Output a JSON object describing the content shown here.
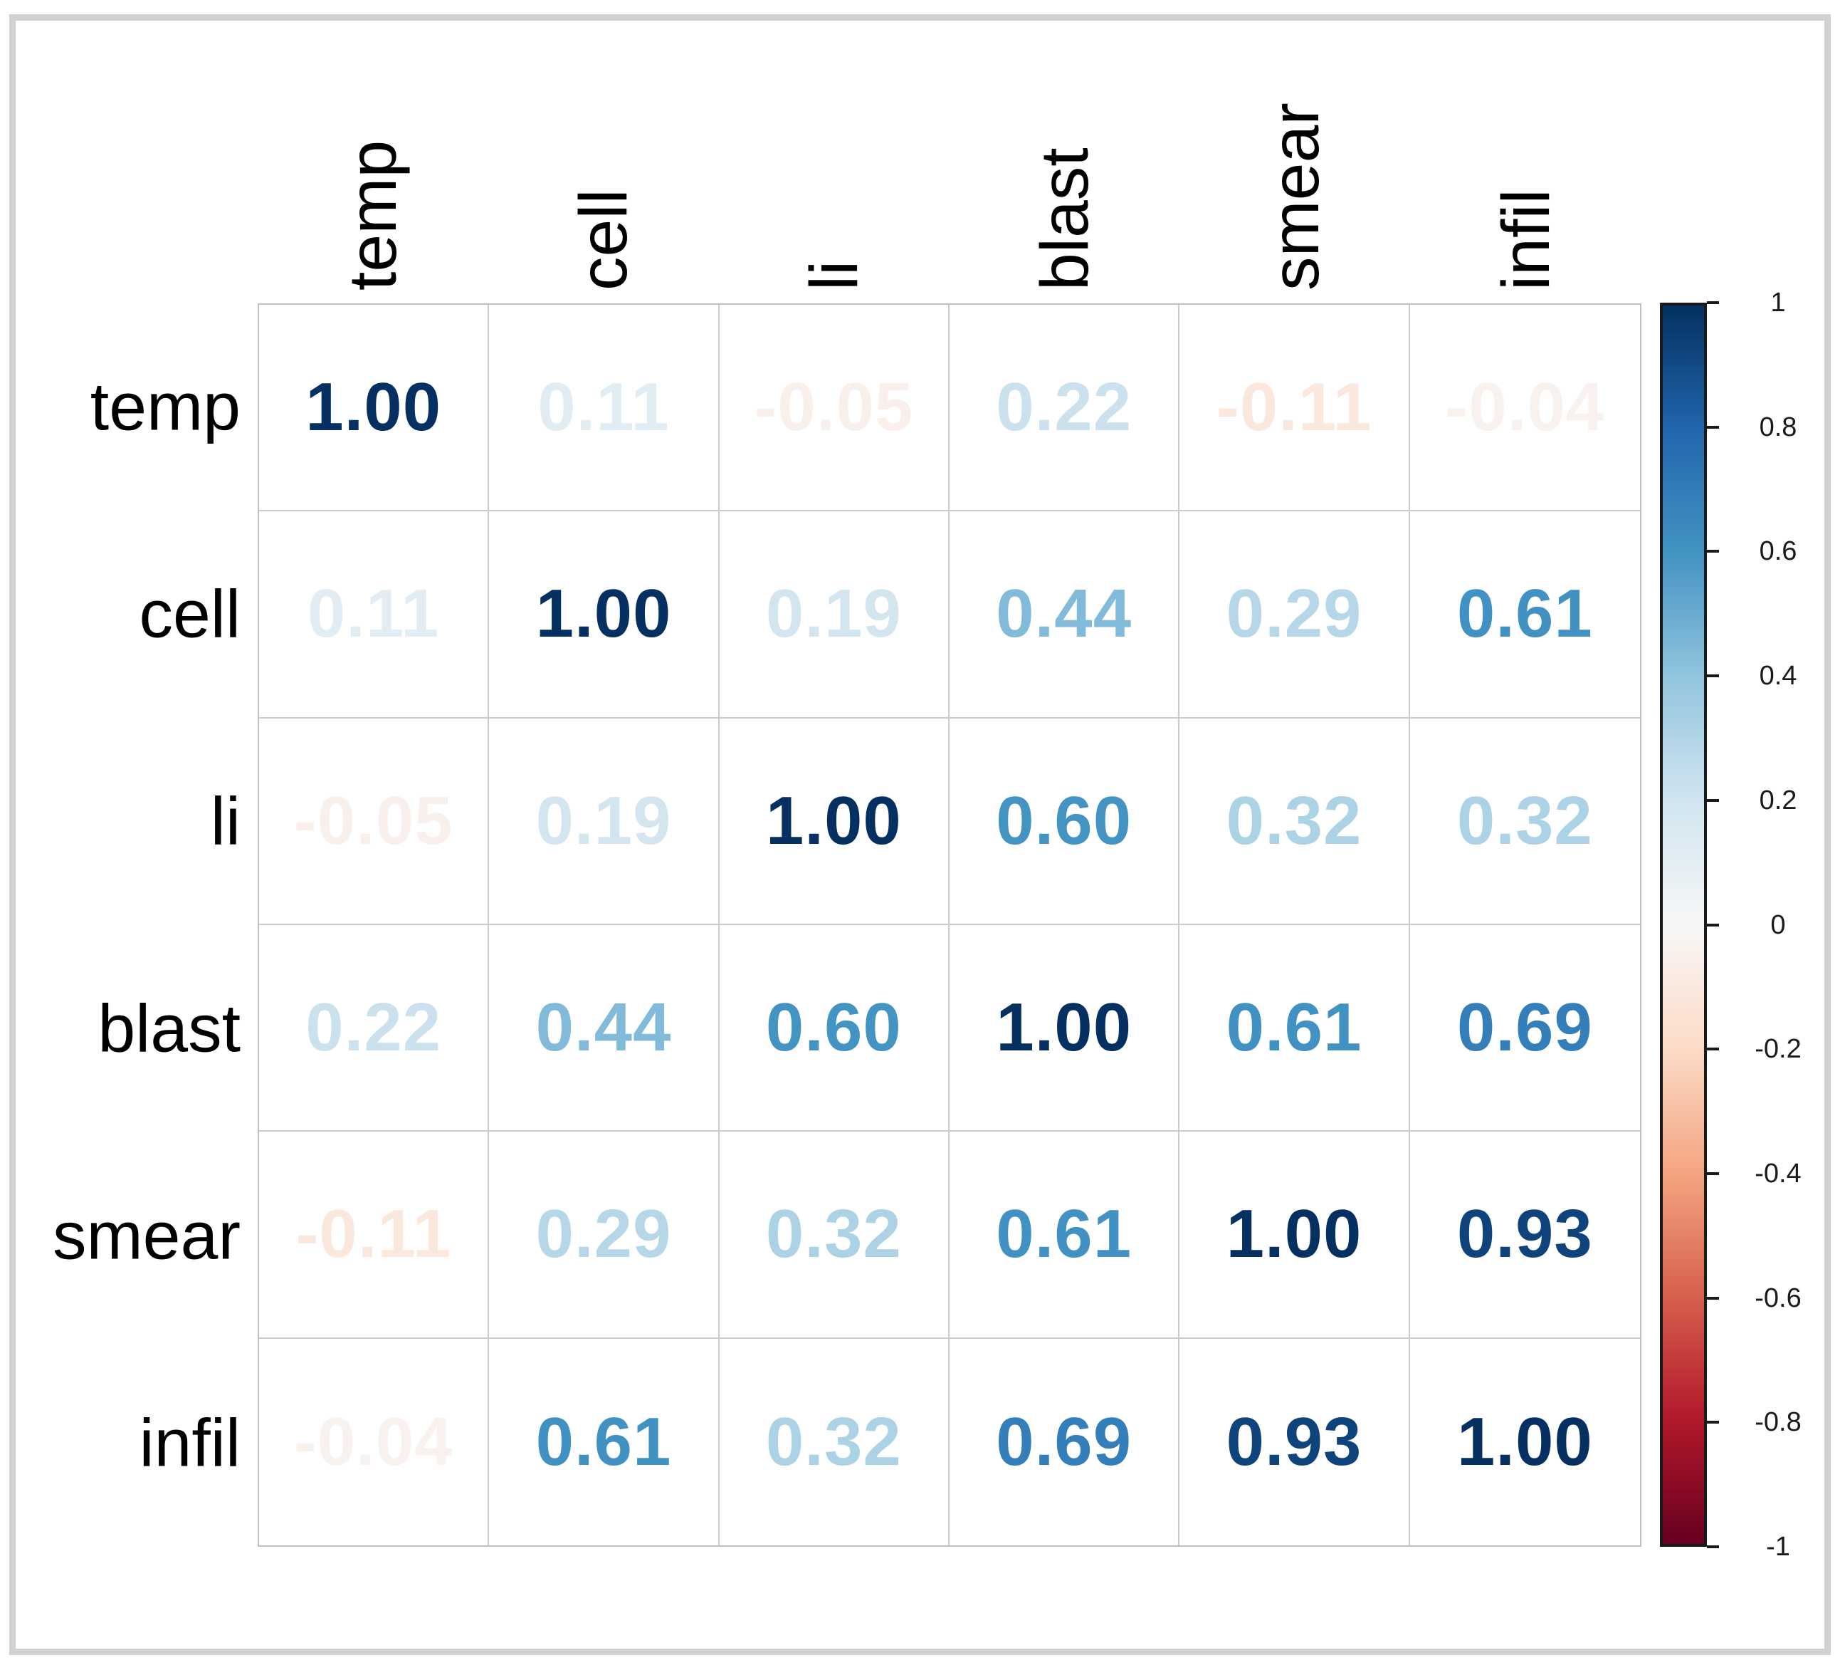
{
  "chart_data": {
    "type": "heatmap",
    "subtype": "correlation-matrix-numbers",
    "variables": [
      "temp",
      "cell",
      "li",
      "blast",
      "smear",
      "infil"
    ],
    "matrix": [
      [
        1.0,
        0.11,
        -0.05,
        0.22,
        -0.11,
        -0.04
      ],
      [
        0.11,
        1.0,
        0.19,
        0.44,
        0.29,
        0.61
      ],
      [
        -0.05,
        0.19,
        1.0,
        0.6,
        0.32,
        0.32
      ],
      [
        0.22,
        0.44,
        0.6,
        1.0,
        0.61,
        0.69
      ],
      [
        -0.11,
        0.29,
        0.32,
        0.61,
        1.0,
        0.93
      ],
      [
        -0.04,
        0.61,
        0.32,
        0.69,
        0.93,
        1.0
      ]
    ],
    "value_decimals": 2,
    "value_range": [
      -1,
      1
    ],
    "colormap_neg_to_pos": [
      "#67001F",
      "#B2182B",
      "#D6604D",
      "#F4A582",
      "#FDDBC7",
      "#F7F7F7",
      "#D1E5F0",
      "#92C5DE",
      "#4393C3",
      "#2166AC",
      "#053061"
    ],
    "colorbar": {
      "position": "right",
      "ticks": [
        {
          "value": 1,
          "label": "1"
        },
        {
          "value": 0.8,
          "label": "0.8"
        },
        {
          "value": 0.6,
          "label": "0.6"
        },
        {
          "value": 0.4,
          "label": "0.4"
        },
        {
          "value": 0.2,
          "label": "0.2"
        },
        {
          "value": 0,
          "label": "0"
        },
        {
          "value": -0.2,
          "label": "-0.2"
        },
        {
          "value": -0.4,
          "label": "-0.4"
        },
        {
          "value": -0.6,
          "label": "-0.6"
        },
        {
          "value": -0.8,
          "label": "-0.8"
        },
        {
          "value": -1,
          "label": "-1"
        }
      ]
    },
    "colors": {
      "background": "#ffffff",
      "frame_border": "#d2d2d2",
      "grid_line": "#cbcbcb",
      "grid_outer_border": "#bfbfbf",
      "axis_label": "#000000",
      "colorbar_border": "#1a1a1a",
      "colorbar_tick_label": "#1a1a1a"
    }
  }
}
